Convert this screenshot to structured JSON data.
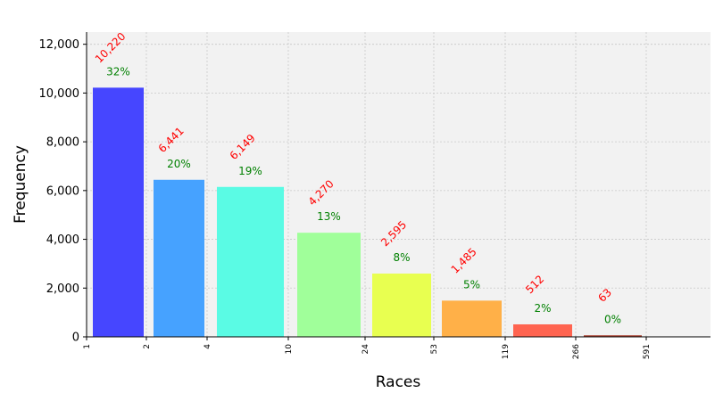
{
  "chart_data": {
    "type": "bar",
    "xlabel": "Races",
    "ylabel": "Frequency",
    "ylim": [
      0,
      12500
    ],
    "yticks": [
      "0",
      "2,000",
      "4,000",
      "6,000",
      "8,000",
      "10,000",
      "12,000"
    ],
    "ytick_values": [
      0,
      2000,
      4000,
      6000,
      8000,
      10000,
      12000
    ],
    "xticks": [
      "1",
      "2",
      "4",
      "10",
      "24",
      "53",
      "119",
      "266",
      "591"
    ],
    "grid": true,
    "background": "#f2f2f2",
    "bars": [
      {
        "range": "1-2",
        "value": 10220,
        "count_label": "10,220",
        "pct_label": "32%",
        "color": "#4646ff"
      },
      {
        "range": "2-4",
        "value": 6441,
        "count_label": "6,441",
        "pct_label": "20%",
        "color": "#46a2ff"
      },
      {
        "range": "4-10",
        "value": 6149,
        "count_label": "6,149",
        "pct_label": "19%",
        "color": "#5afbe4"
      },
      {
        "range": "10-24",
        "value": 4270,
        "count_label": "4,270",
        "pct_label": "13%",
        "color": "#a0ff9a"
      },
      {
        "range": "24-53",
        "value": 2595,
        "count_label": "2,595",
        "pct_label": "8%",
        "color": "#e8ff50"
      },
      {
        "range": "53-119",
        "value": 1485,
        "count_label": "1,485",
        "pct_label": "5%",
        "color": "#ffb048"
      },
      {
        "range": "119-266",
        "value": 512,
        "count_label": "512",
        "pct_label": "2%",
        "color": "#ff6450"
      },
      {
        "range": "266-591",
        "value": 63,
        "count_label": "63",
        "pct_label": "0%",
        "color": "#a83a28"
      }
    ]
  }
}
